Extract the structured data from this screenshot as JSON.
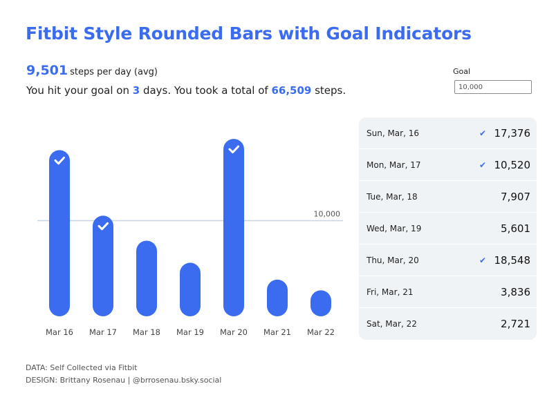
{
  "title": "Fitbit Style Rounded Bars with Goal Indicators",
  "avg": {
    "value": "9,501",
    "unit": "steps per day (avg)"
  },
  "summary": {
    "prefix": "You hit your goal on ",
    "days": "3",
    "middle": " days. You took a total of ",
    "total": "66,509",
    "suffix": " steps."
  },
  "goal": {
    "label": "Goal",
    "value": "10,000"
  },
  "chart_data": {
    "type": "bar",
    "categories": [
      "Mar 16",
      "Mar 17",
      "Mar 18",
      "Mar 19",
      "Mar 20",
      "Mar 21",
      "Mar 22"
    ],
    "values": [
      17376,
      10520,
      7907,
      5601,
      18548,
      3836,
      2721
    ],
    "goal_line": 10000,
    "goal_line_label": "10,000",
    "goal_met": [
      true,
      true,
      false,
      false,
      true,
      false,
      false
    ],
    "ylim": [
      0,
      20000
    ],
    "bar_color": "#3b6cf0",
    "goal_line_color": "#c8d7e6"
  },
  "table": {
    "rows": [
      {
        "day": "Sun, Mar, 16",
        "check": "✔",
        "value": "17,376"
      },
      {
        "day": "Mon, Mar, 17",
        "check": "✔",
        "value": "10,520"
      },
      {
        "day": "Tue, Mar, 18",
        "check": "",
        "value": "7,907"
      },
      {
        "day": "Wed, Mar, 19",
        "check": "",
        "value": "5,601"
      },
      {
        "day": "Thu, Mar, 20",
        "check": "✔",
        "value": "18,548"
      },
      {
        "day": "Fri, Mar, 21",
        "check": "",
        "value": "3,836"
      },
      {
        "day": "Sat, Mar, 22",
        "check": "",
        "value": "2,721"
      }
    ]
  },
  "footer": {
    "data": "DATA: Self Collected via Fitbit",
    "design": "DESIGN: Brittany Rosenau | @brrosenau.bsky.social"
  }
}
